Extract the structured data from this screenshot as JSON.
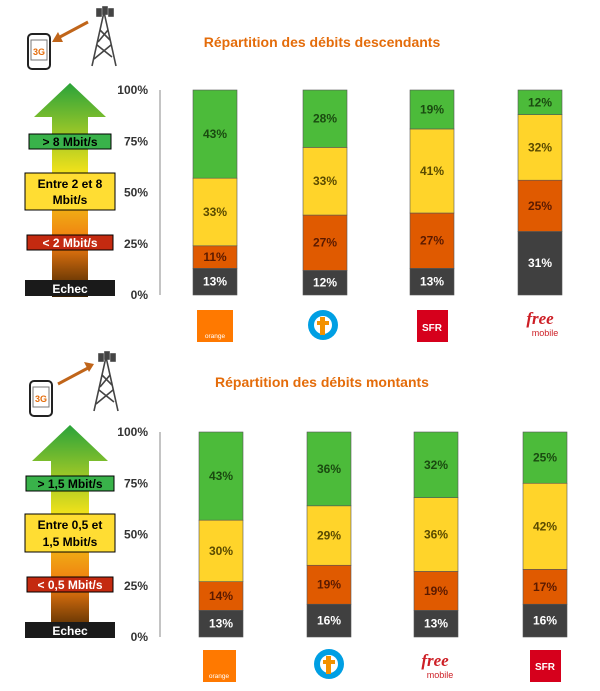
{
  "chart_data": [
    {
      "type": "bar",
      "stacked": true,
      "title": "Répartition des débits descendants",
      "ylim": [
        0,
        100
      ],
      "yticks": [
        "0%",
        "25%",
        "50%",
        "75%",
        "100%"
      ],
      "grid": false,
      "categories": [
        "orange",
        "Bouygues",
        "SFR",
        "free mobile"
      ],
      "series": [
        {
          "name": "Echec",
          "values": [
            13,
            12,
            13,
            31
          ],
          "color": "#404040"
        },
        {
          "name": "< 2 Mbit/s",
          "values": [
            11,
            27,
            27,
            25
          ],
          "color": "#e05a00"
        },
        {
          "name": "Entre 2 et 8 Mbit/s",
          "values": [
            33,
            33,
            41,
            32
          ],
          "color": "#ffd42a"
        },
        {
          "name": "> 8 Mbit/s",
          "values": [
            43,
            28,
            19,
            12
          ],
          "color": "#4cbb3a"
        }
      ],
      "data_labels": [
        [
          "13%",
          "11%",
          "33%",
          "43%"
        ],
        [
          "12%",
          "27%",
          "33%",
          "28%"
        ],
        [
          "13%",
          "27%",
          "41%",
          "19%"
        ],
        [
          "31%",
          "25%",
          "32%",
          "12%"
        ]
      ]
    },
    {
      "type": "bar",
      "stacked": true,
      "title": "Répartition des débits montants",
      "ylim": [
        0,
        100
      ],
      "yticks": [
        "0%",
        "25%",
        "50%",
        "75%",
        "100%"
      ],
      "grid": false,
      "categories": [
        "orange",
        "Bouygues",
        "free mobile",
        "SFR"
      ],
      "series": [
        {
          "name": "Echec",
          "values": [
            13,
            16,
            13,
            16
          ],
          "color": "#404040"
        },
        {
          "name": "< 0,5 Mbit/s",
          "values": [
            14,
            19,
            19,
            17
          ],
          "color": "#e05a00"
        },
        {
          "name": "Entre 0,5 et 1,5 Mbit/s",
          "values": [
            30,
            29,
            36,
            42
          ],
          "color": "#ffd42a"
        },
        {
          "name": "> 1,5 Mbit/s",
          "values": [
            43,
            36,
            32,
            25
          ],
          "color": "#4cbb3a"
        }
      ],
      "data_labels": [
        [
          "13%",
          "14%",
          "30%",
          "43%"
        ],
        [
          "16%",
          "19%",
          "29%",
          "36%"
        ],
        [
          "13%",
          "19%",
          "36%",
          "32%"
        ],
        [
          "16%",
          "17%",
          "42%",
          "25%"
        ]
      ]
    }
  ],
  "legend_top": {
    "badge": "3G",
    "high": "> 8 Mbit/s",
    "mid_line1": "Entre 2 et 8",
    "mid_line2": "Mbit/s",
    "low": "< 2 Mbit/s",
    "fail": "Echec"
  },
  "legend_bottom": {
    "badge": "3G",
    "high": "> 1,5 Mbit/s",
    "mid_line1": "Entre 0,5 et",
    "mid_line2": "1,5 Mbit/s",
    "low": "< 0,5 Mbit/s",
    "fail": "Echec"
  },
  "logos": {
    "orange": "orange",
    "sfr": "SFR",
    "free_line1": "free",
    "free_line2": "mobile"
  },
  "icons": [
    "phone-icon",
    "signal-arrow-icon",
    "cell-tower-icon",
    "legend-arrow-icon",
    "orange-logo-icon",
    "bouygues-logo-icon",
    "sfr-logo-icon",
    "free-mobile-logo-icon"
  ]
}
